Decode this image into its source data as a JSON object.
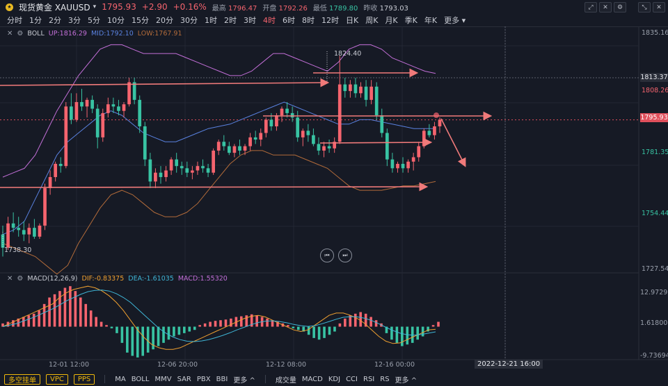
{
  "header": {
    "symbol": "现货黄金 XAUUSD",
    "price": "1795.93",
    "change": "+2.90",
    "change_pct": "+0.16%",
    "stats": [
      {
        "label": "最高",
        "value": "1796.47",
        "tone": "up"
      },
      {
        "label": "开盘",
        "value": "1792.26",
        "tone": "up"
      },
      {
        "label": "最低",
        "value": "1789.80",
        "tone": "dn"
      },
      {
        "label": "昨收",
        "value": "1793.03",
        "tone": "nt"
      }
    ]
  },
  "intervals": [
    "分时",
    "1分",
    "2分",
    "3分",
    "5分",
    "10分",
    "15分",
    "20分",
    "30分",
    "1时",
    "2时",
    "3时",
    "4时",
    "6时",
    "8时",
    "12时",
    "日K",
    "周K",
    "月K",
    "季K",
    "年K",
    "更多"
  ],
  "active_interval": "4时",
  "boll": {
    "name": "BOLL",
    "up": "UP:1816.29",
    "mid": "MID:1792.10",
    "low": "LOW:1767.91"
  },
  "macd": {
    "name": "MACD(12,26,9)",
    "dif": "DIF:-0.83375",
    "dea": "DEA:-1.61035",
    "macd": "MACD:1.55320"
  },
  "price_axis": [
    "1835.16",
    "1808.26",
    "1781.35",
    "1754.44",
    "1727.54"
  ],
  "macd_axis": [
    "12.97295",
    "1.61800",
    "-9.73694"
  ],
  "price_tags": {
    "crosshair": "1813.37",
    "current": "1795.93"
  },
  "annotations": {
    "high": "1824.40",
    "low": "1738.30"
  },
  "time_labels": [
    "12-01 12:00",
    "12-06 20:00",
    "12-12 08:00",
    "12-16 00:00"
  ],
  "crosshair_date": "2022-12-21 16:00",
  "bottom": {
    "buttons": [
      "多空挂单",
      "VPC",
      "PPS"
    ],
    "main_indicators": [
      "MA",
      "BOLL",
      "MMV",
      "SAR",
      "PBX",
      "BBI",
      "更多 ^"
    ],
    "sub_indicators": [
      "成交量",
      "MACD",
      "KDJ",
      "CCI",
      "RSI",
      "RS",
      "更多 ^"
    ]
  },
  "colors": {
    "up": "#f5646e",
    "down": "#38c3a3",
    "boll_up": "#c36fd8",
    "boll_mid": "#5a82e0",
    "boll_low": "#b26b3a",
    "dif": "#f0a030",
    "dea": "#3fb5d6",
    "bg": "#161a25",
    "arrow": "#f07a7a"
  },
  "tool_icons": [
    "expand-icon",
    "cross-icon",
    "settings-icon",
    "fullscreen-icon",
    "close-icon"
  ],
  "chart_data": {
    "type": "candlestick",
    "title": "",
    "xlabel": "",
    "ylabel": "",
    "ylim": [
      1727.54,
      1835.16
    ],
    "candles": [
      [
        1744,
        1748,
        1734,
        1738
      ],
      [
        1738,
        1752,
        1737,
        1749
      ],
      [
        1749,
        1754,
        1745,
        1747
      ],
      [
        1747,
        1752,
        1743,
        1746
      ],
      [
        1746,
        1750,
        1741,
        1744
      ],
      [
        1744,
        1749,
        1740,
        1747
      ],
      [
        1747,
        1751,
        1742,
        1743
      ],
      [
        1743,
        1749,
        1742,
        1748
      ],
      [
        1748,
        1767,
        1746,
        1765
      ],
      [
        1765,
        1773,
        1762,
        1770
      ],
      [
        1770,
        1777,
        1768,
        1776
      ],
      [
        1776,
        1779,
        1772,
        1775
      ],
      [
        1775,
        1804,
        1774,
        1802
      ],
      [
        1802,
        1808,
        1794,
        1796
      ],
      [
        1796,
        1808,
        1795,
        1804
      ],
      [
        1804,
        1810,
        1800,
        1802
      ],
      [
        1802,
        1806,
        1797,
        1805
      ],
      [
        1805,
        1807,
        1799,
        1801
      ],
      [
        1801,
        1803,
        1783,
        1788
      ],
      [
        1788,
        1801,
        1786,
        1799
      ],
      [
        1799,
        1806,
        1797,
        1803
      ],
      [
        1803,
        1806,
        1799,
        1802
      ],
      [
        1802,
        1805,
        1798,
        1800
      ],
      [
        1800,
        1804,
        1797,
        1803
      ],
      [
        1803,
        1815,
        1802,
        1813
      ],
      [
        1813,
        1815,
        1803,
        1805
      ],
      [
        1805,
        1807,
        1790,
        1793
      ],
      [
        1793,
        1795,
        1775,
        1778
      ],
      [
        1778,
        1781,
        1765,
        1768
      ],
      [
        1768,
        1774,
        1765,
        1772
      ],
      [
        1772,
        1775,
        1767,
        1770
      ],
      [
        1770,
        1775,
        1768,
        1773
      ],
      [
        1773,
        1779,
        1771,
        1778
      ],
      [
        1778,
        1781,
        1772,
        1775
      ],
      [
        1775,
        1777,
        1771,
        1774
      ],
      [
        1774,
        1777,
        1770,
        1772
      ],
      [
        1772,
        1775,
        1769,
        1773
      ],
      [
        1773,
        1777,
        1771,
        1775
      ],
      [
        1775,
        1778,
        1772,
        1774
      ],
      [
        1774,
        1776,
        1770,
        1772
      ],
      [
        1772,
        1783,
        1771,
        1782
      ],
      [
        1782,
        1787,
        1780,
        1786
      ],
      [
        1786,
        1789,
        1782,
        1784
      ],
      [
        1784,
        1786,
        1780,
        1781
      ],
      [
        1781,
        1785,
        1779,
        1784
      ],
      [
        1784,
        1787,
        1780,
        1782
      ],
      [
        1782,
        1785,
        1780,
        1784
      ],
      [
        1784,
        1790,
        1782,
        1788
      ],
      [
        1788,
        1791,
        1785,
        1787
      ],
      [
        1787,
        1792,
        1784,
        1790
      ],
      [
        1790,
        1797,
        1788,
        1796
      ],
      [
        1796,
        1799,
        1791,
        1793
      ],
      [
        1793,
        1799,
        1791,
        1798
      ],
      [
        1798,
        1802,
        1795,
        1801
      ],
      [
        1801,
        1804,
        1797,
        1799
      ],
      [
        1799,
        1802,
        1795,
        1797
      ],
      [
        1797,
        1800,
        1786,
        1788
      ],
      [
        1788,
        1792,
        1784,
        1791
      ],
      [
        1791,
        1794,
        1786,
        1789
      ],
      [
        1789,
        1792,
        1784,
        1785
      ],
      [
        1785,
        1788,
        1780,
        1782
      ],
      [
        1782,
        1786,
        1779,
        1784
      ],
      [
        1784,
        1787,
        1781,
        1783
      ],
      [
        1783,
        1788,
        1781,
        1786
      ],
      [
        1786,
        1825,
        1785,
        1812
      ],
      [
        1812,
        1815,
        1806,
        1809
      ],
      [
        1809,
        1814,
        1806,
        1812
      ],
      [
        1812,
        1815,
        1806,
        1808
      ],
      [
        1808,
        1813,
        1806,
        1811
      ],
      [
        1811,
        1814,
        1802,
        1805
      ],
      [
        1805,
        1814,
        1803,
        1811
      ],
      [
        1811,
        1813,
        1796,
        1798
      ],
      [
        1798,
        1801,
        1788,
        1790
      ],
      [
        1790,
        1792,
        1775,
        1778
      ],
      [
        1778,
        1781,
        1772,
        1774
      ],
      [
        1774,
        1777,
        1772,
        1776
      ],
      [
        1776,
        1779,
        1772,
        1774
      ],
      [
        1774,
        1778,
        1772,
        1777
      ],
      [
        1777,
        1781,
        1773,
        1779
      ],
      [
        1779,
        1786,
        1777,
        1784
      ],
      [
        1784,
        1792,
        1783,
        1791
      ],
      [
        1791,
        1794,
        1788,
        1789
      ],
      [
        1789,
        1795,
        1787,
        1793
      ],
      [
        1793,
        1797,
        1790,
        1796
      ]
    ],
    "boll_up": [
      1770,
      1772,
      1774,
      1780,
      1790,
      1800,
      1808,
      1816,
      1822,
      1828,
      1830,
      1830,
      1828,
      1826,
      1826,
      1826,
      1826,
      1824,
      1822,
      1820,
      1818,
      1816,
      1816,
      1818,
      1822,
      1826,
      1826,
      1824,
      1822,
      1820,
      1818,
      1822,
      1828,
      1830,
      1830,
      1828,
      1824,
      1822,
      1820,
      1818,
      1817
    ],
    "boll_mid": [
      1744,
      1746,
      1750,
      1760,
      1770,
      1780,
      1786,
      1790,
      1794,
      1798,
      1800,
      1798,
      1794,
      1790,
      1788,
      1786,
      1786,
      1788,
      1790,
      1792,
      1793,
      1794,
      1796,
      1798,
      1800,
      1802,
      1804,
      1802,
      1800,
      1798,
      1796,
      1794,
      1794,
      1796,
      1796,
      1795,
      1794,
      1793,
      1792,
      1792,
      1792
    ],
    "boll_low": [
      1740,
      1738,
      1736,
      1734,
      1730,
      1726,
      1730,
      1740,
      1748,
      1756,
      1762,
      1764,
      1762,
      1758,
      1754,
      1752,
      1752,
      1754,
      1758,
      1764,
      1770,
      1776,
      1780,
      1782,
      1782,
      1780,
      1780,
      1780,
      1778,
      1776,
      1774,
      1770,
      1766,
      1764,
      1764,
      1764,
      1765,
      1766,
      1766,
      1767,
      1768
    ],
    "macd_hist": [
      1,
      1.5,
      2,
      2.5,
      3,
      3.5,
      4,
      5,
      7,
      9,
      10,
      11,
      12,
      12.5,
      11,
      9,
      7,
      5,
      3,
      1.5,
      0.5,
      -0.5,
      -2,
      -5,
      -8,
      -9,
      -9.5,
      -9,
      -8,
      -7,
      -6,
      -5,
      -4,
      -3,
      -2.5,
      -2,
      -1.5,
      -1,
      0.5,
      1,
      1.5,
      1.8,
      2,
      2.2,
      2.5,
      3,
      3.2,
      3.5,
      3.8,
      3.5,
      3,
      2.5,
      2,
      1.5,
      1,
      0.5,
      -0.5,
      -1,
      -1.5,
      -2.5,
      -3.5,
      -4,
      -3.5,
      -2.5,
      -1.5,
      1,
      2.5,
      3.5,
      4,
      4.5,
      4,
      3,
      2,
      1,
      -2,
      -4,
      -5,
      -6,
      -5.5,
      -5,
      -4,
      -3,
      -1.5,
      0.5,
      1.5
    ],
    "macd_dif": [
      0,
      1,
      2,
      3,
      4,
      5,
      6,
      7,
      9,
      10.5,
      11.5,
      12,
      12.5,
      12,
      11,
      9.5,
      7.5,
      5,
      2,
      -1,
      -3.5,
      -5.5,
      -6.5,
      -7,
      -7,
      -6.5,
      -5.5,
      -4.5,
      -3.5,
      -2.5,
      -1.5,
      -0.5,
      0.5,
      1.5,
      2.5,
      3.2,
      3.5,
      3,
      2,
      1,
      0,
      -1,
      -1.5,
      -1,
      0.5,
      2,
      3.5,
      4.2,
      4.2,
      3.5,
      2.5,
      1,
      -1,
      -3,
      -4.5,
      -5.2,
      -5,
      -4,
      -3,
      -2,
      -1,
      -0.8
    ],
    "macd_dea": [
      0,
      0.5,
      1,
      1.8,
      2.6,
      3.5,
      4.5,
      5.5,
      6.7,
      8,
      9,
      10,
      10.8,
      11.2,
      11.3,
      11,
      10.2,
      9,
      7.5,
      5.5,
      3.5,
      1.5,
      -0.5,
      -2,
      -3.2,
      -4,
      -4.5,
      -4.6,
      -4.4,
      -4,
      -3.4,
      -2.7,
      -1.9,
      -1,
      -0.2,
      0.6,
      1.3,
      1.7,
      1.8,
      1.6,
      1.2,
      0.7,
      0.3,
      0.1,
      0.3,
      0.9,
      1.6,
      2.3,
      2.9,
      3.1,
      3,
      2.6,
      1.9,
      0.9,
      -0.2,
      -1.2,
      -2,
      -2.5,
      -2.6,
      -2.4,
      -2,
      -1.6
    ]
  }
}
